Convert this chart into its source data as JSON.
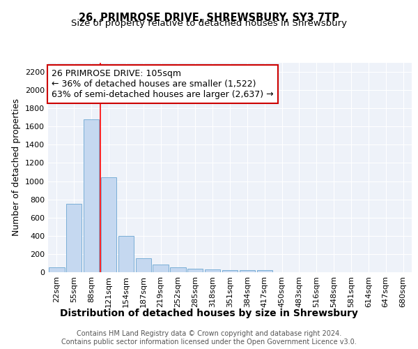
{
  "title_line1": "26, PRIMROSE DRIVE, SHREWSBURY, SY3 7TP",
  "title_line2": "Size of property relative to detached houses in Shrewsbury",
  "xlabel": "Distribution of detached houses by size in Shrewsbury",
  "ylabel": "Number of detached properties",
  "bar_color": "#c5d8f0",
  "bar_edge_color": "#7aaed6",
  "categories": [
    "22sqm",
    "55sqm",
    "88sqm",
    "121sqm",
    "154sqm",
    "187sqm",
    "219sqm",
    "252sqm",
    "285sqm",
    "318sqm",
    "351sqm",
    "384sqm",
    "417sqm",
    "450sqm",
    "483sqm",
    "516sqm",
    "548sqm",
    "581sqm",
    "614sqm",
    "647sqm",
    "680sqm"
  ],
  "values": [
    50,
    750,
    1680,
    1040,
    400,
    150,
    85,
    50,
    40,
    30,
    25,
    20,
    20,
    0,
    0,
    0,
    0,
    0,
    0,
    0,
    0
  ],
  "red_line_x": 2.5,
  "annotation_line1": "26 PRIMROSE DRIVE: 105sqm",
  "annotation_line2": "← 36% of detached houses are smaller (1,522)",
  "annotation_line3": "63% of semi-detached houses are larger (2,637) →",
  "annotation_box_color": "#ffffff",
  "annotation_box_edge_color": "#cc0000",
  "ylim": [
    0,
    2300
  ],
  "yticks": [
    0,
    200,
    400,
    600,
    800,
    1000,
    1200,
    1400,
    1600,
    1800,
    2000,
    2200
  ],
  "footer_text": "Contains HM Land Registry data © Crown copyright and database right 2024.\nContains public sector information licensed under the Open Government Licence v3.0.",
  "bg_color": "#eef2f9",
  "grid_color": "#ffffff",
  "title_fontsize": 10.5,
  "subtitle_fontsize": 9.5,
  "xlabel_fontsize": 10,
  "ylabel_fontsize": 9,
  "tick_fontsize": 8,
  "footer_fontsize": 7,
  "annot_fontsize": 9
}
